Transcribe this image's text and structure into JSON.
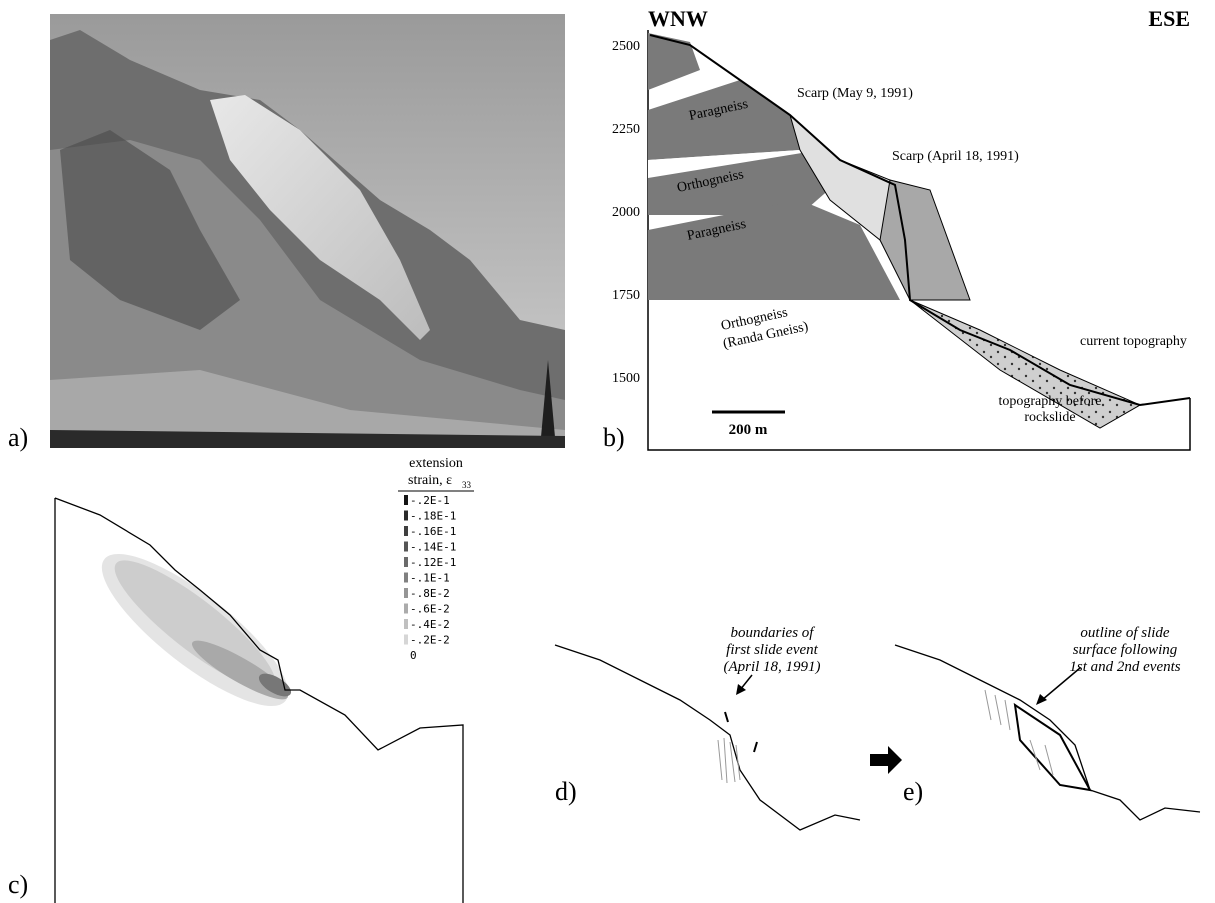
{
  "panels": {
    "a": {
      "label": "a)"
    },
    "b": {
      "label": "b)",
      "left_direction": "WNW",
      "right_direction": "ESE",
      "elevation_labels": [
        2500,
        2250,
        2000,
        1750,
        1500
      ],
      "annotations": [
        "Scarp (May 9, 1991)",
        "Scarp (April 18, 1991)",
        "current topography",
        "topography before",
        "rockslide"
      ],
      "units": [
        "Paragneiss",
        "Orthogneiss",
        "Paragneiss",
        "Orthogneiss",
        "(Randa Gneiss)"
      ],
      "scale_bar": "200 m"
    },
    "c": {
      "label": "c)",
      "legend_title": [
        "extension",
        "strain, ε"
      ],
      "legend_subscript": "33",
      "legend_values": [
        "-.2E-1",
        "-.18E-1",
        "-.16E-1",
        "-.14E-1",
        "-.12E-1",
        "-.1E-1",
        "-.8E-2",
        "-.6E-2",
        "-.4E-2",
        "-.2E-2",
        "0"
      ]
    },
    "d": {
      "label": "d)",
      "annotation": [
        "boundaries of",
        "first slide event",
        "(April 18, 1991)"
      ]
    },
    "e": {
      "label": "e)",
      "annotation": [
        "outline of slide",
        "surface following",
        "1st and 2nd events"
      ]
    }
  }
}
